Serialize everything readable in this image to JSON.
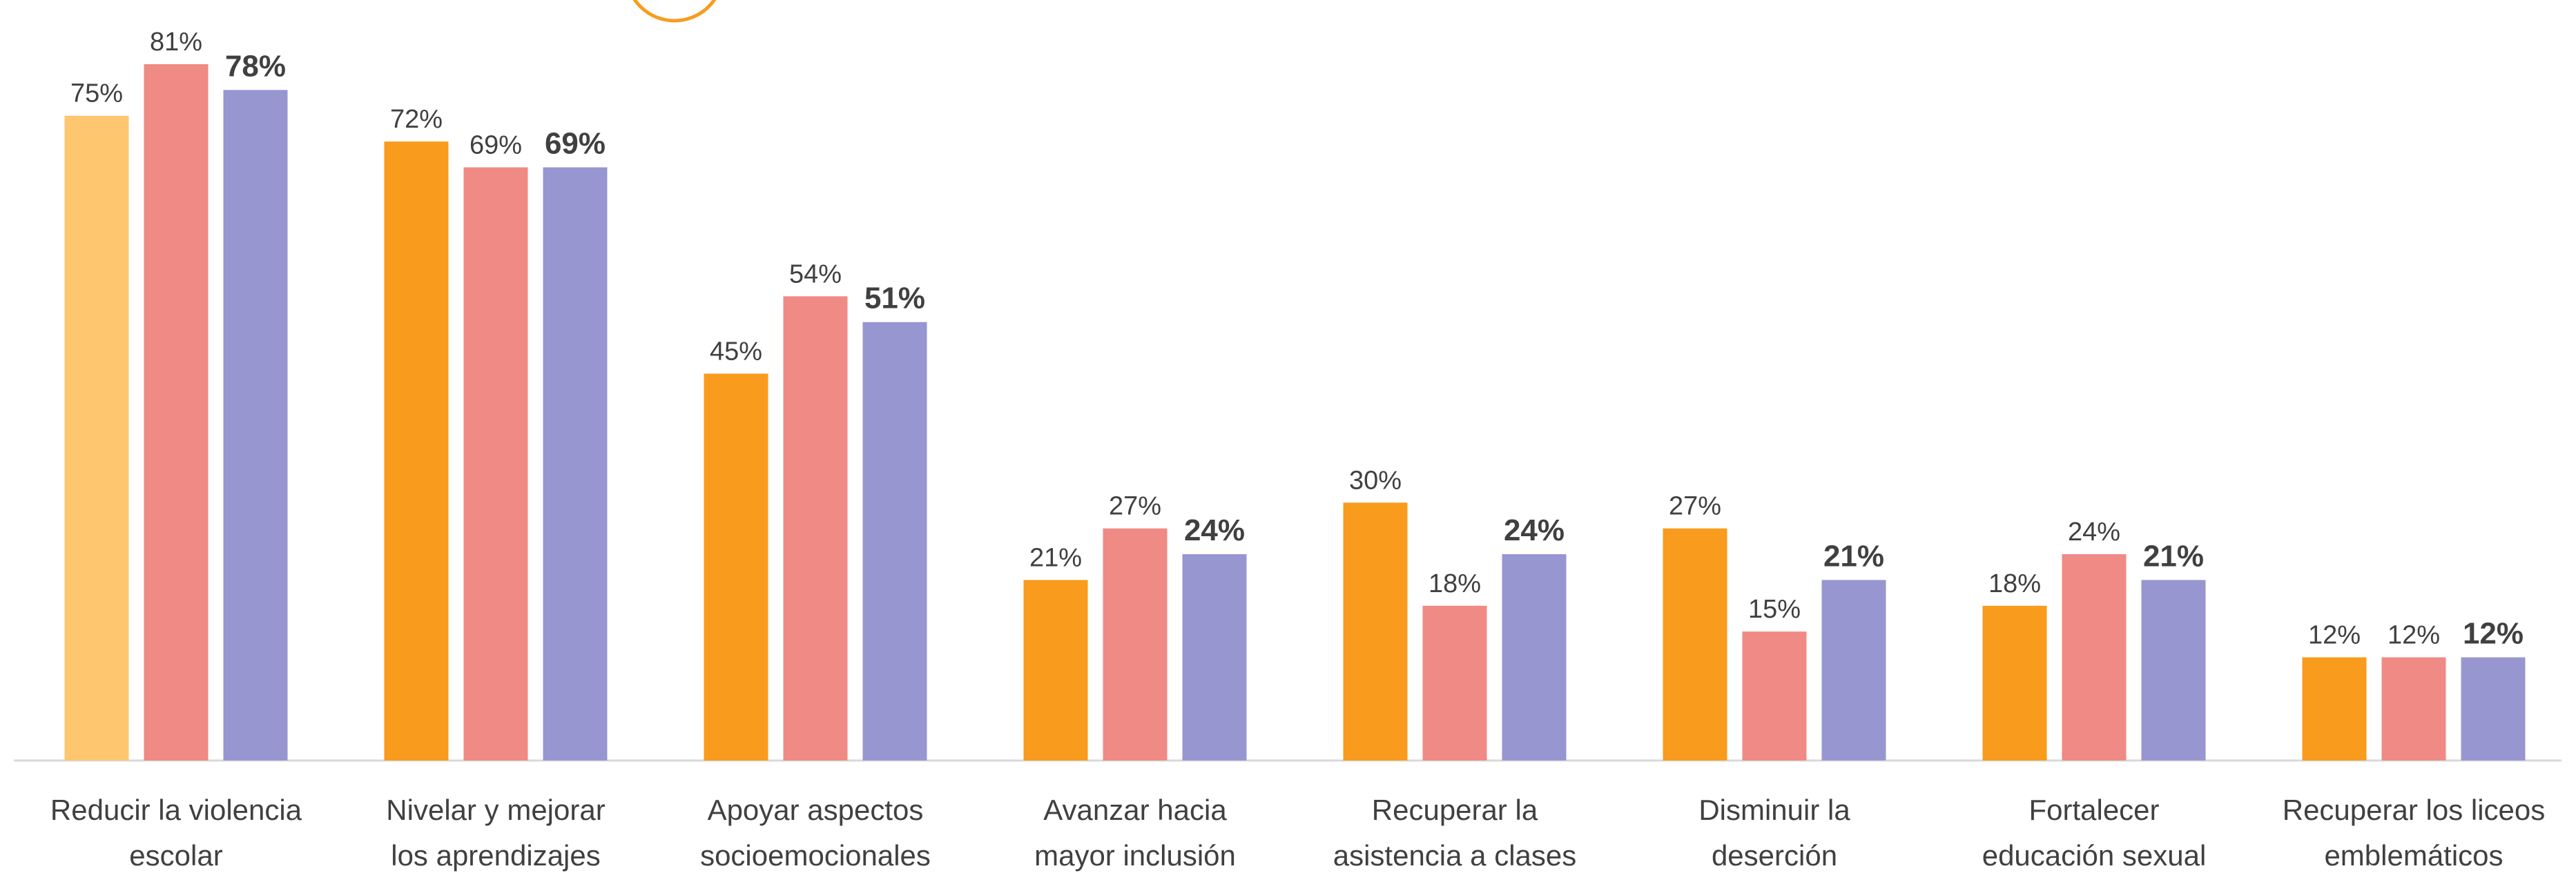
{
  "chart_data": {
    "type": "bar",
    "categories": [
      [
        "Reducir la violencia",
        "escolar"
      ],
      [
        "Nivelar y mejorar",
        "los aprendizajes"
      ],
      [
        "Apoyar aspectos",
        "socioemocionales"
      ],
      [
        "Avanzar hacia",
        "mayor inclusión"
      ],
      [
        "Recuperar la",
        "asistencia a clases"
      ],
      [
        "Disminuir la",
        "deserción"
      ],
      [
        "Fortalecer",
        "educación sexual"
      ],
      [
        "Recuperar los liceos",
        "emblemáticos"
      ]
    ],
    "series": [
      {
        "color": "#F99B1C",
        "colors": [
          "#FFC670",
          "#F99B1C",
          "#F99B1C",
          "#F99B1C",
          "#F99B1C",
          "#F99B1C",
          "#F99B1C",
          "#F99B1C"
        ],
        "values": [
          75,
          72,
          45,
          21,
          30,
          27,
          18,
          12
        ],
        "value_labels": [
          "75%",
          "72%",
          "45%",
          "21%",
          "30%",
          "27%",
          "18%",
          "12%"
        ]
      },
      {
        "color": "#F08A84",
        "values": [
          81,
          69,
          54,
          27,
          18,
          15,
          24,
          12
        ],
        "value_labels": [
          "81%",
          "69%",
          "54%",
          "27%",
          "18%",
          "15%",
          "24%",
          "12%"
        ]
      },
      {
        "color": "#9896D0",
        "bold_labels": true,
        "values": [
          78,
          69,
          51,
          24,
          24,
          21,
          21,
          12
        ],
        "value_labels": [
          "78%",
          "69%",
          "51%",
          "24%",
          "24%",
          "21%",
          "21%",
          "12%"
        ]
      }
    ]
  }
}
